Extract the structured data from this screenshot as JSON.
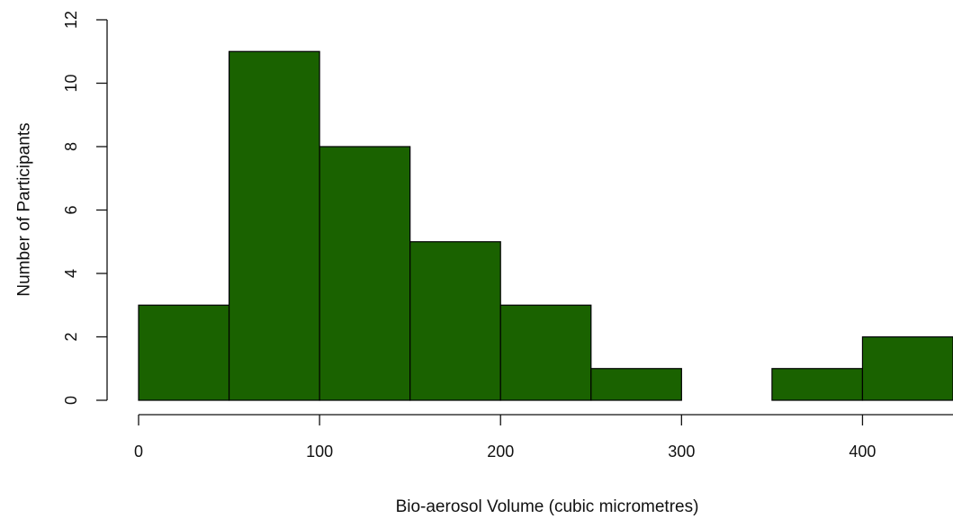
{
  "chart_data": {
    "type": "bar",
    "title": "",
    "xlabel": "Bio-aerosol Volume (cubic micrometres)",
    "ylabel": "Number of Participants",
    "bins": [
      {
        "start": 0,
        "end": 50,
        "count": 3
      },
      {
        "start": 50,
        "end": 100,
        "count": 11
      },
      {
        "start": 100,
        "end": 150,
        "count": 8
      },
      {
        "start": 150,
        "end": 200,
        "count": 5
      },
      {
        "start": 200,
        "end": 250,
        "count": 3
      },
      {
        "start": 250,
        "end": 300,
        "count": 1
      },
      {
        "start": 300,
        "end": 350,
        "count": 0
      },
      {
        "start": 350,
        "end": 400,
        "count": 1
      },
      {
        "start": 400,
        "end": 450,
        "count": 2
      }
    ],
    "x_ticks": [
      0,
      100,
      200,
      300,
      400
    ],
    "y_ticks": [
      0,
      2,
      4,
      6,
      8,
      10,
      12
    ],
    "xlim": [
      0,
      450
    ],
    "ylim": [
      0,
      12
    ],
    "grid": false,
    "legend": "none",
    "bar_color": "#1a6200"
  }
}
